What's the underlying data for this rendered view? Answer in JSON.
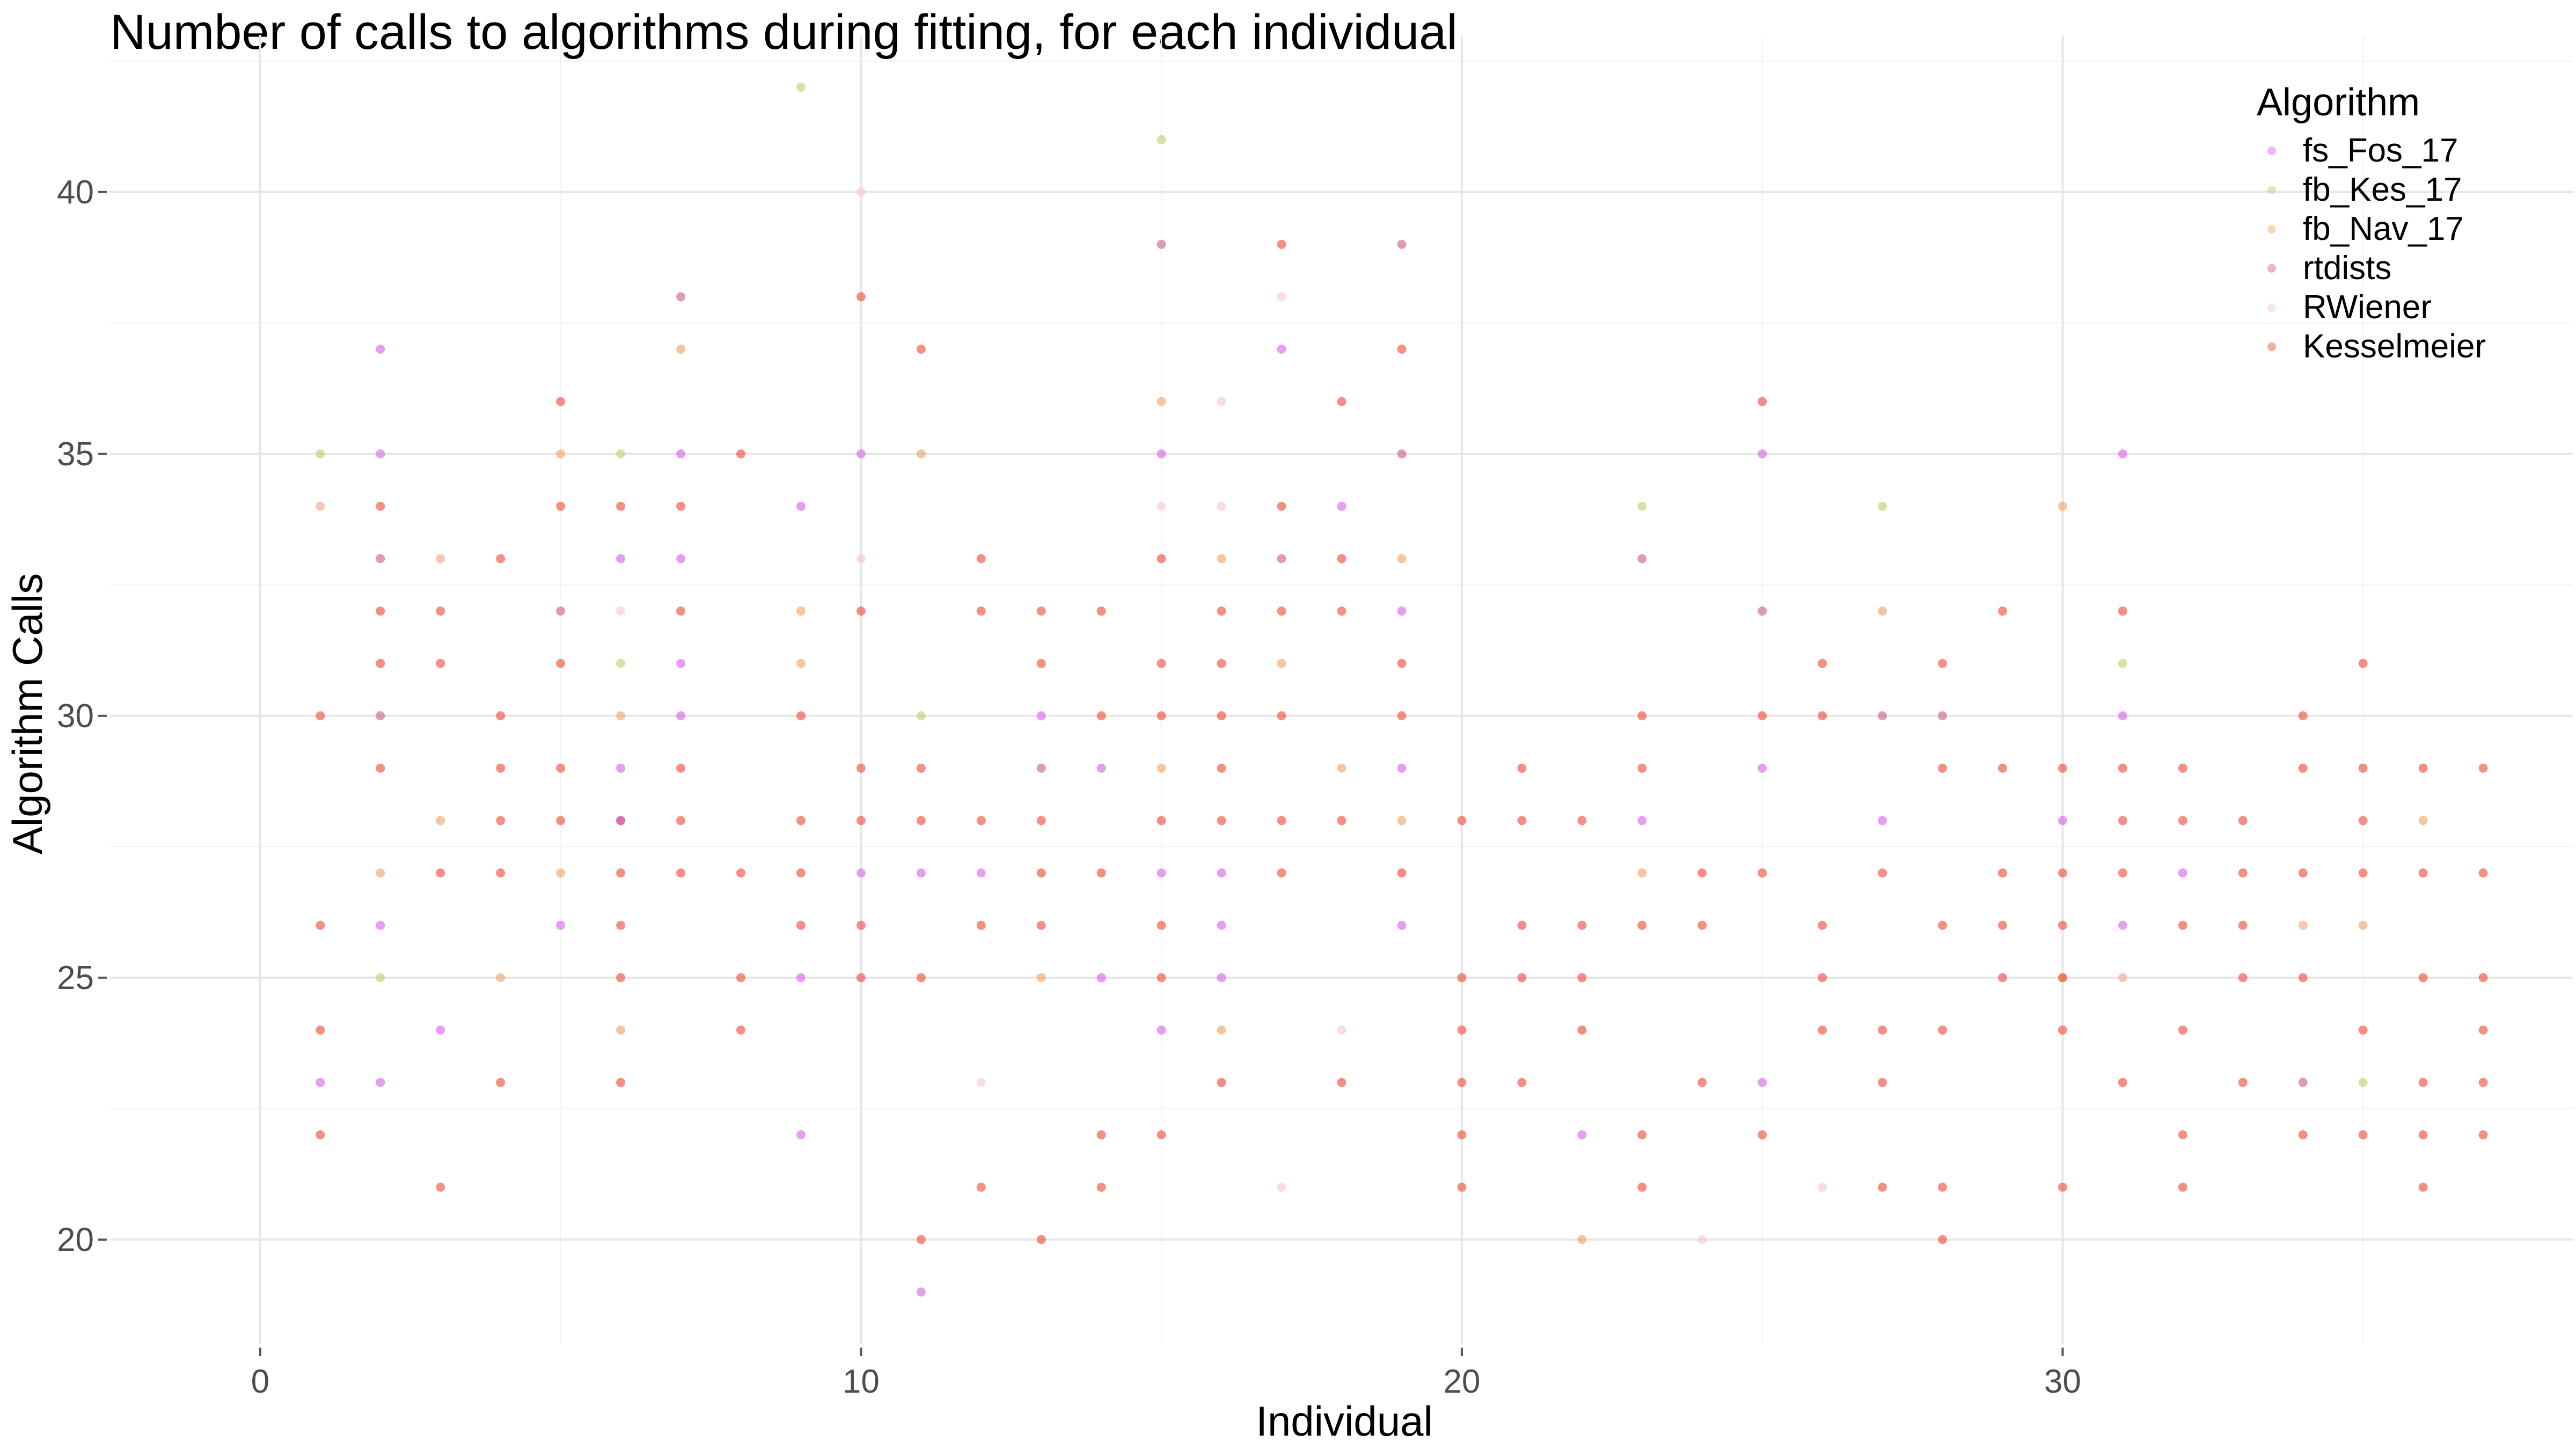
{
  "chart_data": {
    "type": "scatter",
    "title": "Number of calls to algorithms during fitting, for each individual",
    "xlabel": "Individual",
    "ylabel": "Algorithm Calls",
    "xlim": [
      -2.5,
      38.5
    ],
    "ylim": [
      18.0,
      43.0
    ],
    "xticks": [
      0,
      10,
      20,
      30
    ],
    "yticks": [
      20,
      25,
      30,
      35,
      40
    ],
    "grid": true,
    "legend": {
      "title": "Algorithm",
      "position": "right"
    },
    "series": [
      {
        "name": "fs_Fos_17",
        "color": "#d55ee8",
        "points": [
          [
            1,
            23
          ],
          [
            2,
            37
          ],
          [
            2,
            35
          ],
          [
            2,
            26
          ],
          [
            2,
            23
          ],
          [
            3,
            24
          ],
          [
            5,
            26
          ],
          [
            6,
            33
          ],
          [
            6,
            29
          ],
          [
            6,
            28
          ],
          [
            7,
            35
          ],
          [
            7,
            33
          ],
          [
            7,
            31
          ],
          [
            7,
            30
          ],
          [
            9,
            34
          ],
          [
            9,
            25
          ],
          [
            9,
            22
          ],
          [
            10,
            35
          ],
          [
            10,
            27
          ],
          [
            11,
            27
          ],
          [
            11,
            19
          ],
          [
            12,
            27
          ],
          [
            13,
            30
          ],
          [
            14,
            29
          ],
          [
            14,
            25
          ],
          [
            15,
            35
          ],
          [
            15,
            27
          ],
          [
            15,
            24
          ],
          [
            16,
            27
          ],
          [
            16,
            26
          ],
          [
            16,
            25
          ],
          [
            17,
            37
          ],
          [
            18,
            34
          ],
          [
            19,
            32
          ],
          [
            19,
            29
          ],
          [
            19,
            26
          ],
          [
            23,
            28
          ],
          [
            25,
            35
          ],
          [
            25,
            29
          ],
          [
            25,
            23
          ],
          [
            27,
            28
          ],
          [
            30,
            28
          ],
          [
            31,
            35
          ],
          [
            31,
            30
          ],
          [
            31,
            26
          ],
          [
            32,
            27
          ],
          [
            22,
            22
          ]
        ]
      },
      {
        "name": "fb_Kes_17",
        "color": "#c8c870",
        "points": [
          [
            1,
            35
          ],
          [
            2,
            25
          ],
          [
            6,
            35
          ],
          [
            6,
            31
          ],
          [
            9,
            42
          ],
          [
            11,
            30
          ],
          [
            15,
            41
          ],
          [
            23,
            34
          ],
          [
            27,
            34
          ],
          [
            30,
            25
          ],
          [
            31,
            31
          ],
          [
            35,
            23
          ]
        ]
      },
      {
        "name": "fb_Nav_17",
        "color": "#f0a060",
        "points": [
          [
            1,
            34
          ],
          [
            2,
            27
          ],
          [
            3,
            33
          ],
          [
            3,
            28
          ],
          [
            4,
            25
          ],
          [
            5,
            35
          ],
          [
            5,
            27
          ],
          [
            6,
            30
          ],
          [
            6,
            24
          ],
          [
            7,
            37
          ],
          [
            9,
            32
          ],
          [
            9,
            31
          ],
          [
            11,
            35
          ],
          [
            13,
            25
          ],
          [
            15,
            36
          ],
          [
            15,
            29
          ],
          [
            16,
            33
          ],
          [
            16,
            24
          ],
          [
            17,
            31
          ],
          [
            18,
            29
          ],
          [
            19,
            33
          ],
          [
            19,
            28
          ],
          [
            22,
            20
          ],
          [
            23,
            27
          ],
          [
            27,
            32
          ],
          [
            30,
            34
          ],
          [
            31,
            25
          ],
          [
            34,
            26
          ],
          [
            35,
            26
          ],
          [
            36,
            28
          ]
        ]
      },
      {
        "name": "rtdists",
        "color": "#c85a82",
        "points": [
          [
            2,
            33
          ],
          [
            2,
            30
          ],
          [
            5,
            32
          ],
          [
            6,
            28
          ],
          [
            7,
            38
          ],
          [
            13,
            29
          ],
          [
            15,
            39
          ],
          [
            17,
            33
          ],
          [
            19,
            39
          ],
          [
            19,
            35
          ],
          [
            23,
            33
          ],
          [
            25,
            32
          ],
          [
            27,
            30
          ],
          [
            28,
            30
          ],
          [
            34,
            23
          ]
        ]
      },
      {
        "name": "RWiener",
        "color": "#f3c8c8",
        "points": [
          [
            1,
            34
          ],
          [
            3,
            33
          ],
          [
            6,
            32
          ],
          [
            10,
            40
          ],
          [
            10,
            33
          ],
          [
            12,
            23
          ],
          [
            15,
            34
          ],
          [
            16,
            36
          ],
          [
            16,
            34
          ],
          [
            17,
            38
          ],
          [
            17,
            21
          ],
          [
            18,
            24
          ],
          [
            24,
            20
          ],
          [
            26,
            21
          ],
          [
            31,
            25
          ],
          [
            34,
            26
          ]
        ]
      },
      {
        "name": "Kesselmeier",
        "color": "#ee4432",
        "points": [
          [
            1,
            30
          ],
          [
            1,
            26
          ],
          [
            1,
            24
          ],
          [
            1,
            22
          ],
          [
            2,
            34
          ],
          [
            2,
            32
          ],
          [
            2,
            31
          ],
          [
            2,
            29
          ],
          [
            3,
            32
          ],
          [
            3,
            31
          ],
          [
            3,
            27
          ],
          [
            3,
            21
          ],
          [
            4,
            33
          ],
          [
            4,
            30
          ],
          [
            4,
            29
          ],
          [
            4,
            28
          ],
          [
            4,
            27
          ],
          [
            4,
            23
          ],
          [
            5,
            36
          ],
          [
            5,
            34
          ],
          [
            5,
            31
          ],
          [
            5,
            29
          ],
          [
            5,
            28
          ],
          [
            6,
            34
          ],
          [
            6,
            27
          ],
          [
            6,
            26
          ],
          [
            6,
            25
          ],
          [
            6,
            23
          ],
          [
            7,
            34
          ],
          [
            7,
            32
          ],
          [
            7,
            29
          ],
          [
            7,
            28
          ],
          [
            7,
            27
          ],
          [
            8,
            35
          ],
          [
            8,
            27
          ],
          [
            8,
            25
          ],
          [
            8,
            24
          ],
          [
            9,
            28
          ],
          [
            9,
            27
          ],
          [
            9,
            26
          ],
          [
            9,
            30
          ],
          [
            10,
            38
          ],
          [
            10,
            32
          ],
          [
            10,
            29
          ],
          [
            10,
            28
          ],
          [
            10,
            26
          ],
          [
            10,
            25
          ],
          [
            11,
            37
          ],
          [
            11,
            29
          ],
          [
            11,
            28
          ],
          [
            11,
            25
          ],
          [
            11,
            20
          ],
          [
            12,
            33
          ],
          [
            12,
            32
          ],
          [
            12,
            28
          ],
          [
            12,
            26
          ],
          [
            12,
            21
          ],
          [
            13,
            32
          ],
          [
            13,
            31
          ],
          [
            13,
            28
          ],
          [
            13,
            27
          ],
          [
            13,
            26
          ],
          [
            13,
            20
          ],
          [
            14,
            32
          ],
          [
            14,
            30
          ],
          [
            14,
            27
          ],
          [
            14,
            22
          ],
          [
            14,
            21
          ],
          [
            15,
            33
          ],
          [
            15,
            31
          ],
          [
            15,
            30
          ],
          [
            15,
            28
          ],
          [
            15,
            26
          ],
          [
            15,
            25
          ],
          [
            15,
            22
          ],
          [
            16,
            32
          ],
          [
            16,
            31
          ],
          [
            16,
            30
          ],
          [
            16,
            29
          ],
          [
            16,
            28
          ],
          [
            16,
            23
          ],
          [
            17,
            39
          ],
          [
            17,
            34
          ],
          [
            17,
            32
          ],
          [
            17,
            30
          ],
          [
            17,
            28
          ],
          [
            17,
            27
          ],
          [
            18,
            36
          ],
          [
            18,
            33
          ],
          [
            18,
            32
          ],
          [
            18,
            28
          ],
          [
            18,
            23
          ],
          [
            19,
            37
          ],
          [
            19,
            31
          ],
          [
            19,
            30
          ],
          [
            19,
            27
          ],
          [
            20,
            28
          ],
          [
            20,
            25
          ],
          [
            20,
            24
          ],
          [
            20,
            23
          ],
          [
            20,
            22
          ],
          [
            20,
            21
          ],
          [
            21,
            29
          ],
          [
            21,
            28
          ],
          [
            21,
            26
          ],
          [
            21,
            25
          ],
          [
            21,
            23
          ],
          [
            22,
            28
          ],
          [
            22,
            26
          ],
          [
            22,
            25
          ],
          [
            22,
            24
          ],
          [
            23,
            30
          ],
          [
            23,
            29
          ],
          [
            23,
            26
          ],
          [
            23,
            22
          ],
          [
            23,
            21
          ],
          [
            24,
            27
          ],
          [
            24,
            26
          ],
          [
            24,
            23
          ],
          [
            25,
            36
          ],
          [
            25,
            30
          ],
          [
            25,
            27
          ],
          [
            25,
            22
          ],
          [
            26,
            31
          ],
          [
            26,
            30
          ],
          [
            26,
            26
          ],
          [
            26,
            25
          ],
          [
            26,
            24
          ],
          [
            27,
            27
          ],
          [
            27,
            24
          ],
          [
            27,
            23
          ],
          [
            27,
            21
          ],
          [
            28,
            31
          ],
          [
            28,
            29
          ],
          [
            28,
            26
          ],
          [
            28,
            24
          ],
          [
            28,
            21
          ],
          [
            28,
            20
          ],
          [
            29,
            32
          ],
          [
            29,
            29
          ],
          [
            29,
            27
          ],
          [
            29,
            26
          ],
          [
            29,
            25
          ],
          [
            30,
            29
          ],
          [
            30,
            27
          ],
          [
            30,
            26
          ],
          [
            30,
            25
          ],
          [
            30,
            24
          ],
          [
            30,
            21
          ],
          [
            31,
            32
          ],
          [
            31,
            29
          ],
          [
            31,
            28
          ],
          [
            31,
            27
          ],
          [
            31,
            23
          ],
          [
            32,
            29
          ],
          [
            32,
            28
          ],
          [
            32,
            26
          ],
          [
            32,
            24
          ],
          [
            32,
            22
          ],
          [
            32,
            21
          ],
          [
            33,
            28
          ],
          [
            33,
            27
          ],
          [
            33,
            26
          ],
          [
            33,
            25
          ],
          [
            33,
            23
          ],
          [
            34,
            30
          ],
          [
            34,
            29
          ],
          [
            34,
            27
          ],
          [
            34,
            25
          ],
          [
            34,
            22
          ],
          [
            35,
            31
          ],
          [
            35,
            29
          ],
          [
            35,
            28
          ],
          [
            35,
            27
          ],
          [
            35,
            24
          ],
          [
            35,
            22
          ],
          [
            36,
            29
          ],
          [
            36,
            27
          ],
          [
            36,
            25
          ],
          [
            36,
            23
          ],
          [
            36,
            22
          ],
          [
            36,
            21
          ],
          [
            37,
            29
          ],
          [
            37,
            27
          ],
          [
            37,
            25
          ],
          [
            37,
            24
          ],
          [
            37,
            23
          ],
          [
            37,
            22
          ]
        ]
      }
    ]
  }
}
